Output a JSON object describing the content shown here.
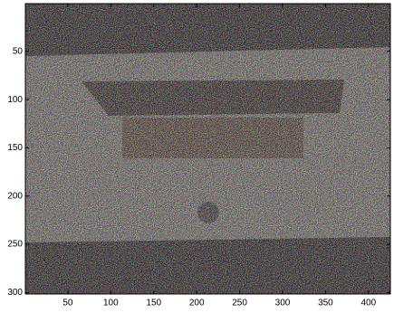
{
  "chart_data": {
    "type": "image",
    "xlim": [
      0.5,
      425.5
    ],
    "ylim": [
      0.5,
      301.5
    ],
    "xticks": [
      50,
      100,
      150,
      200,
      250,
      300,
      350,
      400
    ],
    "yticks": [
      50,
      100,
      150,
      200,
      250,
      300
    ]
  }
}
